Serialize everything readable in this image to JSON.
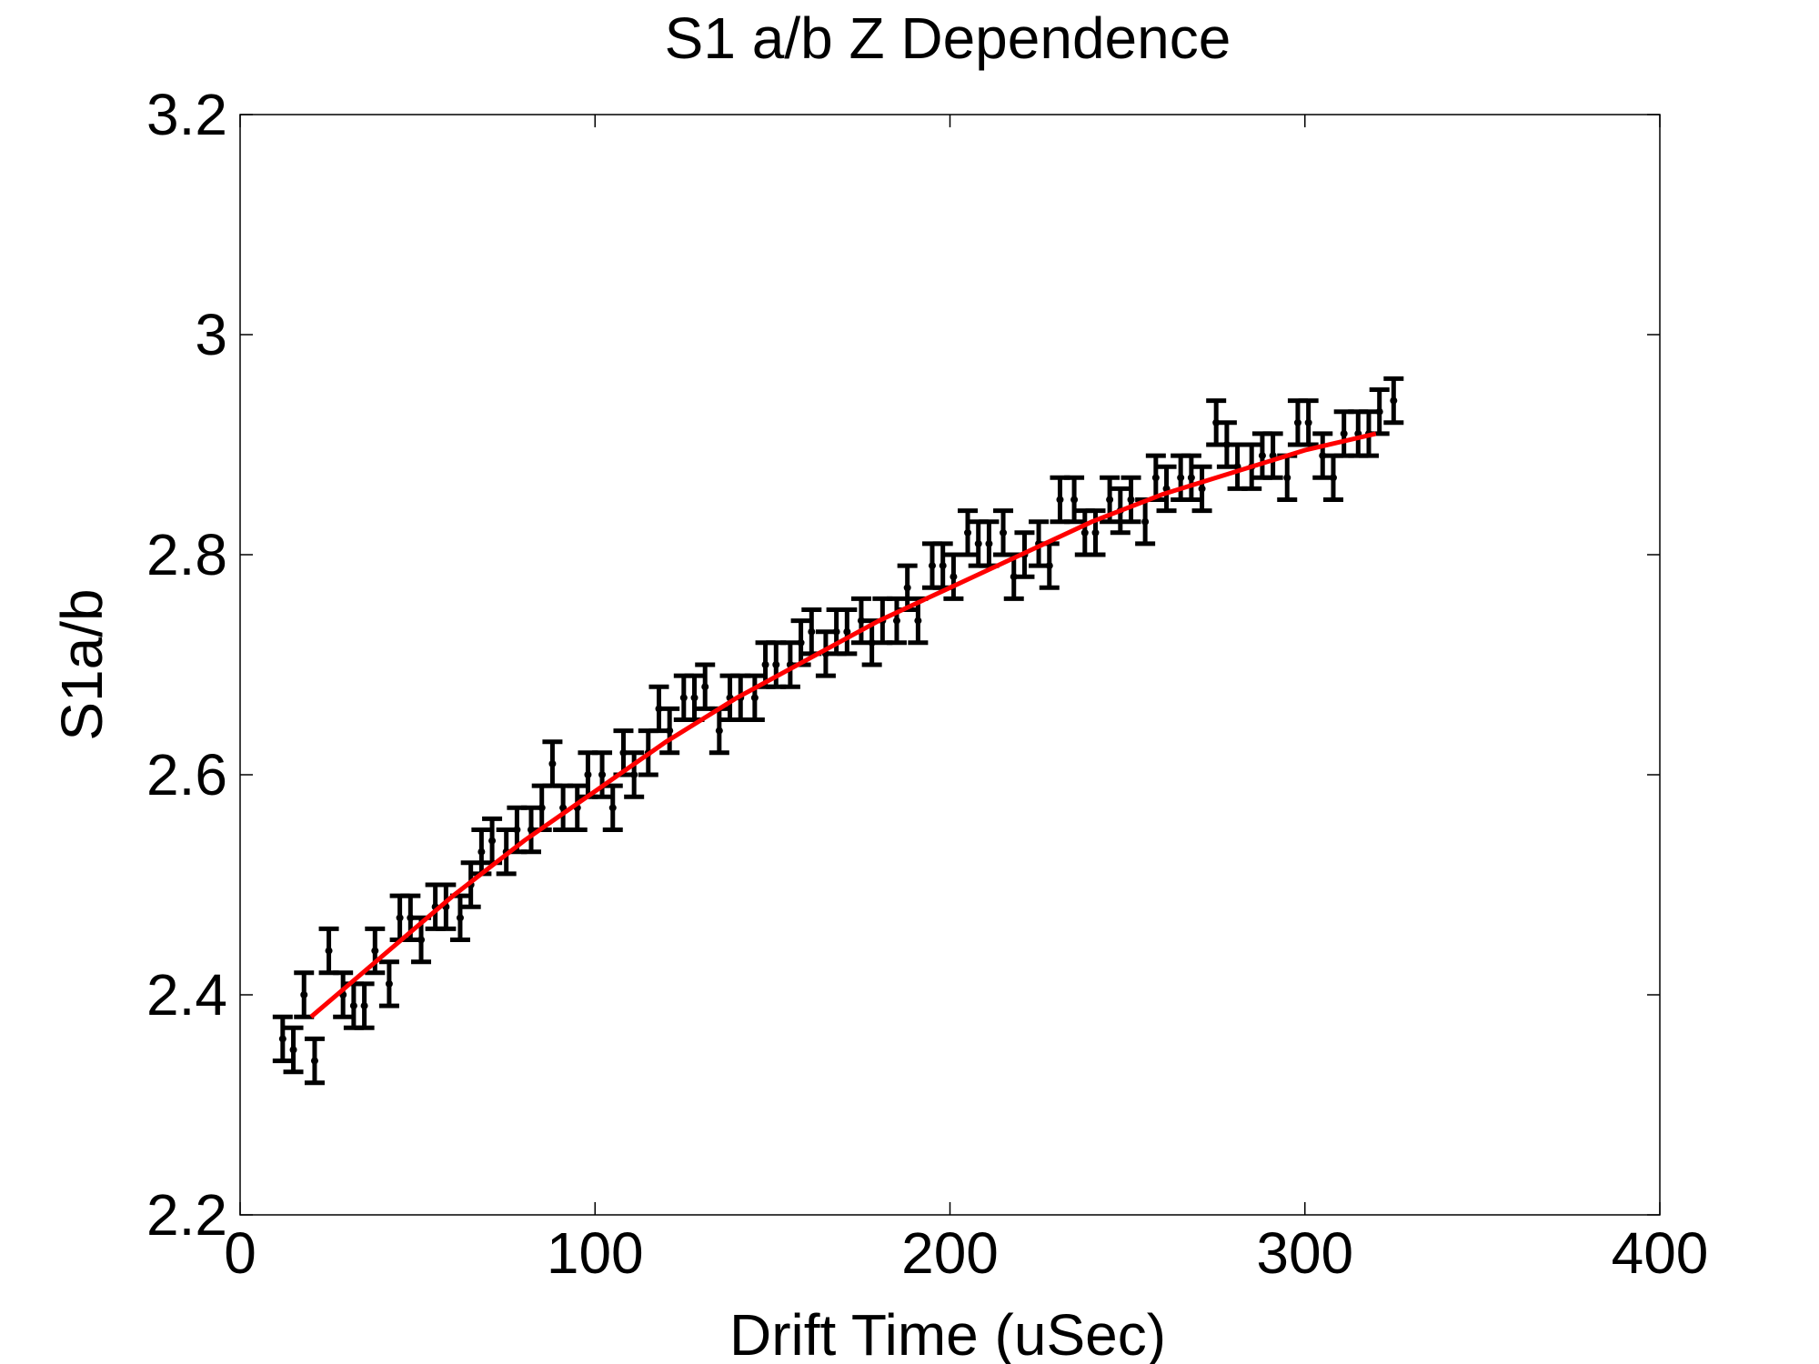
{
  "chart_data": {
    "type": "scatter",
    "title": "S1 a/b Z Dependence",
    "xlabel": "Drift Time (uSec)",
    "ylabel": "S1a/b",
    "xlim": [
      0,
      400
    ],
    "ylim": [
      2.2,
      3.2
    ],
    "xticks": [
      "0",
      "100",
      "200",
      "300",
      "400"
    ],
    "yticks": [
      "2.2",
      "2.4",
      "2.6",
      "2.8",
      "3",
      "3.2"
    ],
    "grid": false,
    "legend": "none",
    "marker_color": "#000000",
    "fit_color": "#ff0000",
    "series": [
      {
        "kind": "errorbar",
        "x": [
          12,
          15,
          18,
          21,
          25,
          29,
          32,
          35,
          38,
          42,
          45,
          48,
          51,
          55,
          58,
          62,
          65,
          68,
          71,
          75,
          78,
          82,
          85,
          88,
          91,
          95,
          98,
          102,
          105,
          108,
          111,
          115,
          118,
          121,
          125,
          128,
          131,
          135,
          138,
          141,
          145,
          148,
          151,
          155,
          158,
          161,
          165,
          168,
          171,
          175,
          178,
          181,
          185,
          188,
          191,
          195,
          198,
          201,
          205,
          208,
          211,
          215,
          218,
          221,
          225,
          228,
          231,
          235,
          238,
          241,
          245,
          248,
          251,
          255,
          258,
          261,
          265,
          268,
          271,
          275,
          278,
          281,
          285,
          288,
          291,
          295,
          298,
          301,
          305,
          308,
          311,
          315,
          318,
          321,
          325
        ],
        "y": [
          2.36,
          2.35,
          2.4,
          2.34,
          2.44,
          2.4,
          2.39,
          2.39,
          2.44,
          2.41,
          2.47,
          2.47,
          2.45,
          2.48,
          2.48,
          2.47,
          2.5,
          2.53,
          2.54,
          2.53,
          2.55,
          2.55,
          2.57,
          2.61,
          2.57,
          2.57,
          2.6,
          2.6,
          2.57,
          2.62,
          2.6,
          2.62,
          2.66,
          2.64,
          2.67,
          2.67,
          2.68,
          2.64,
          2.67,
          2.67,
          2.67,
          2.7,
          2.7,
          2.7,
          2.72,
          2.73,
          2.71,
          2.73,
          2.73,
          2.74,
          2.72,
          2.74,
          2.74,
          2.77,
          2.74,
          2.79,
          2.79,
          2.78,
          2.82,
          2.81,
          2.81,
          2.82,
          2.78,
          2.8,
          2.81,
          2.79,
          2.85,
          2.85,
          2.82,
          2.82,
          2.85,
          2.84,
          2.85,
          2.83,
          2.87,
          2.86,
          2.87,
          2.87,
          2.86,
          2.92,
          2.9,
          2.88,
          2.88,
          2.89,
          2.89,
          2.87,
          2.92,
          2.92,
          2.89,
          2.87,
          2.91,
          2.91,
          2.91,
          2.93,
          2.94
        ],
        "error": 0.02
      },
      {
        "kind": "fit-line",
        "x": [
          20,
          40,
          60,
          80,
          100,
          120,
          140,
          160,
          180,
          200,
          220,
          240,
          260,
          280,
          300,
          320
        ],
        "y": [
          2.38,
          2.435,
          2.49,
          2.54,
          2.585,
          2.63,
          2.67,
          2.705,
          2.74,
          2.77,
          2.8,
          2.83,
          2.855,
          2.875,
          2.895,
          2.91
        ]
      }
    ]
  }
}
